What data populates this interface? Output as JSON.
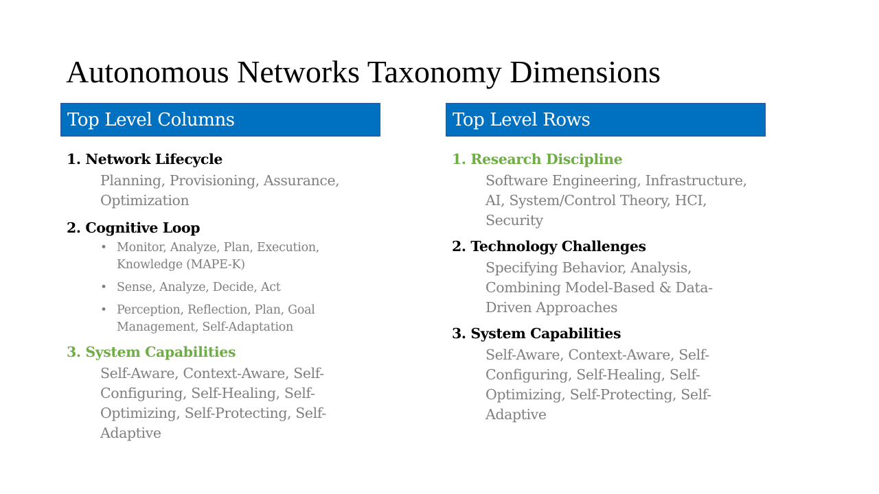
{
  "slide": {
    "title": "Autonomous Networks Taxonomy Dimensions"
  },
  "left": {
    "header": "Top Level  Columns",
    "sections": [
      {
        "heading": "1. Network Lifecycle",
        "text": "Planning, Provisioning, Assurance, Optimization"
      },
      {
        "heading": "2. Cognitive Loop",
        "bullets": [
          "Monitor, Analyze, Plan, Execution, Knowledge (MAPE-K)",
          "Sense, Analyze, Decide, Act",
          "Perception, Reflection, Plan, Goal Management, Self-Adaptation"
        ]
      },
      {
        "heading": "3. System Capabilities",
        "text": "Self-Aware, Context-Aware, Self-Configuring, Self-Healing, Self-Optimizing, Self-Protecting, Self-Adaptive"
      }
    ]
  },
  "right": {
    "header": "Top Level  Rows",
    "sections": [
      {
        "heading": "1. Research Discipline",
        "text": "Software Engineering, Infrastructure, AI, System/Control Theory, HCI, Security"
      },
      {
        "heading": "2. Technology Challenges",
        "text": "Specifying Behavior, Analysis, Combining Model-Based & Data-Driven Approaches"
      },
      {
        "heading": "3. System Capabilities",
        "text": "Self-Aware, Context-Aware, Self-Configuring, Self-Healing, Self-Optimizing, Self-Protecting, Self-Adaptive"
      }
    ]
  },
  "colors": {
    "header_bg": "#0070c0",
    "highlight_green": "#70ad47",
    "body_gray": "#7f7f7f",
    "heading_black": "#000000"
  }
}
